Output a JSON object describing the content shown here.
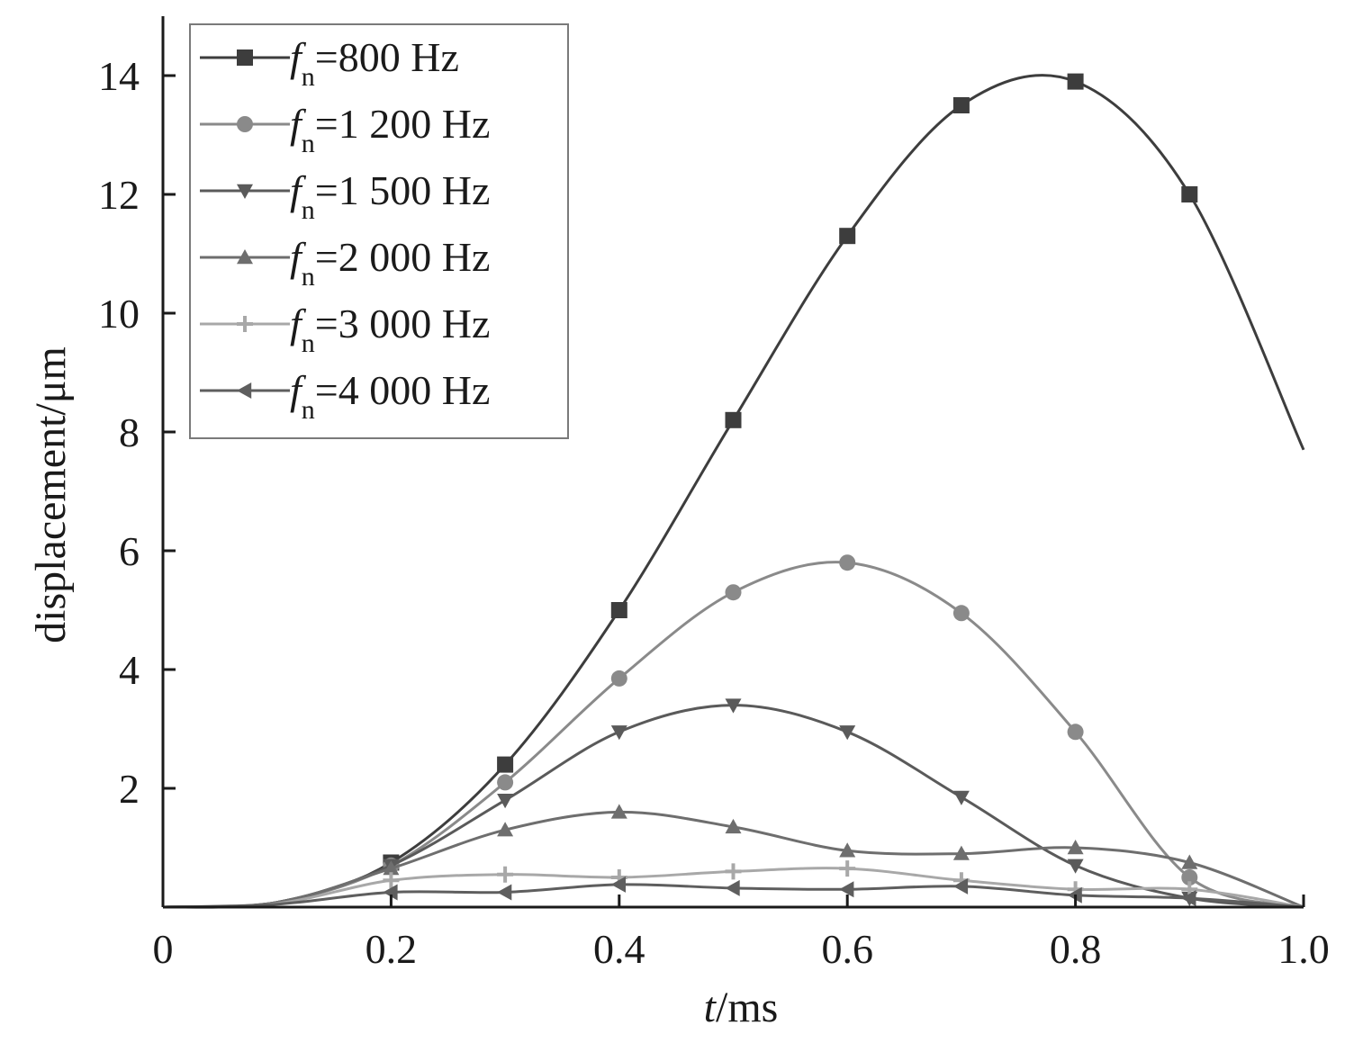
{
  "chart_data": {
    "type": "line",
    "xlabel_italic": "t",
    "xlabel_unit": "/ms",
    "ylabel": "displacement/μm",
    "xlim": [
      0,
      1.0
    ],
    "ylim": [
      0,
      15
    ],
    "x_ticks": [
      0,
      0.2,
      0.4,
      0.6,
      0.8,
      1.0
    ],
    "x_tick_labels": [
      "0",
      "0.2",
      "0.4",
      "0.6",
      "0.8",
      "1.0"
    ],
    "y_ticks": [
      2,
      4,
      6,
      8,
      10,
      12,
      14
    ],
    "y_tick_labels": [
      "2",
      "4",
      "6",
      "8",
      "10",
      "12",
      "14"
    ],
    "grid": false,
    "legend_position": "top-left",
    "legend_prefix": "f",
    "legend_subscript": "n",
    "x": [
      0,
      0.1,
      0.2,
      0.3,
      0.4,
      0.5,
      0.6,
      0.7,
      0.8,
      0.9,
      1.0
    ],
    "series": [
      {
        "name": "=800 Hz",
        "marker": "square",
        "color": "#3d3d3d",
        "values": [
          0,
          0.08,
          0.75,
          2.4,
          5.0,
          8.2,
          11.3,
          13.5,
          13.9,
          12.0,
          7.7
        ],
        "marker_x": [
          0.2,
          0.3,
          0.4,
          0.5,
          0.6,
          0.7,
          0.8,
          0.9
        ],
        "marker_values": [
          0.75,
          2.4,
          5.0,
          8.2,
          11.3,
          13.5,
          13.9,
          12.0
        ]
      },
      {
        "name": "=1 200 Hz",
        "marker": "circle",
        "color": "#8a8a8a",
        "values": [
          0,
          0.08,
          0.7,
          2.1,
          3.85,
          5.3,
          5.8,
          4.95,
          2.95,
          0.5,
          0
        ],
        "marker_x": [
          0.2,
          0.3,
          0.4,
          0.5,
          0.6,
          0.7,
          0.8,
          0.9
        ],
        "marker_values": [
          0.7,
          2.1,
          3.85,
          5.3,
          5.8,
          4.95,
          2.95,
          0.5
        ]
      },
      {
        "name": "=1 500 Hz",
        "marker": "triangle-down",
        "color": "#5a5a5a",
        "values": [
          0,
          0.08,
          0.7,
          1.8,
          2.95,
          3.4,
          2.95,
          1.85,
          0.7,
          0.15,
          0
        ],
        "marker_x": [
          0.2,
          0.3,
          0.4,
          0.5,
          0.6,
          0.7,
          0.8,
          0.9
        ],
        "marker_values": [
          0.7,
          1.8,
          2.95,
          3.4,
          2.95,
          1.85,
          0.7,
          0.15
        ]
      },
      {
        "name": "=2 000 Hz",
        "marker": "triangle-up",
        "color": "#6e6e6e",
        "values": [
          0,
          0.08,
          0.65,
          1.3,
          1.6,
          1.35,
          0.95,
          0.9,
          1.0,
          0.75,
          0
        ],
        "marker_x": [
          0.2,
          0.3,
          0.4,
          0.5,
          0.6,
          0.7,
          0.8,
          0.9
        ],
        "marker_values": [
          0.65,
          1.3,
          1.6,
          1.35,
          0.95,
          0.9,
          1.0,
          0.75
        ]
      },
      {
        "name": "=3 000 Hz",
        "marker": "plus",
        "color": "#a8a8a8",
        "values": [
          0,
          0.06,
          0.45,
          0.55,
          0.5,
          0.6,
          0.65,
          0.45,
          0.3,
          0.3,
          0
        ],
        "marker_x": [
          0.2,
          0.3,
          0.4,
          0.5,
          0.6,
          0.7,
          0.8,
          0.9
        ],
        "marker_values": [
          0.45,
          0.55,
          0.5,
          0.6,
          0.65,
          0.45,
          0.3,
          0.3
        ]
      },
      {
        "name": "=4 000 Hz",
        "marker": "triangle-left",
        "color": "#5e5e5e",
        "values": [
          0,
          0.05,
          0.25,
          0.25,
          0.38,
          0.32,
          0.3,
          0.35,
          0.2,
          0.15,
          0
        ],
        "marker_x": [
          0.2,
          0.3,
          0.4,
          0.5,
          0.6,
          0.7,
          0.8,
          0.9
        ],
        "marker_values": [
          0.25,
          0.25,
          0.38,
          0.32,
          0.3,
          0.35,
          0.2,
          0.15
        ]
      }
    ]
  }
}
